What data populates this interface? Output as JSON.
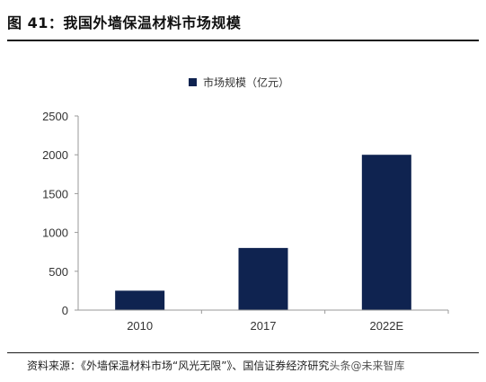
{
  "figure": {
    "title": "图 41：我国外墙保温材料市场规模",
    "source": "资料来源：《外墙保温材料市场“风光无限”》、国信证券经济研究",
    "watermark": "头条@未来智库"
  },
  "colors": {
    "bar": "#0f2350",
    "axis": "#999999",
    "text": "#333333"
  },
  "chart_data": {
    "type": "bar",
    "categories": [
      "2010",
      "2017",
      "2022E"
    ],
    "series": [
      {
        "name": "市场规模（亿元）",
        "values": [
          250,
          800,
          2000
        ]
      }
    ],
    "y_ticks": [
      "0",
      "500",
      "1000",
      "1500",
      "2000",
      "2500"
    ],
    "ylim": [
      0,
      2500
    ],
    "grid": false,
    "legend_position": "top-center"
  }
}
